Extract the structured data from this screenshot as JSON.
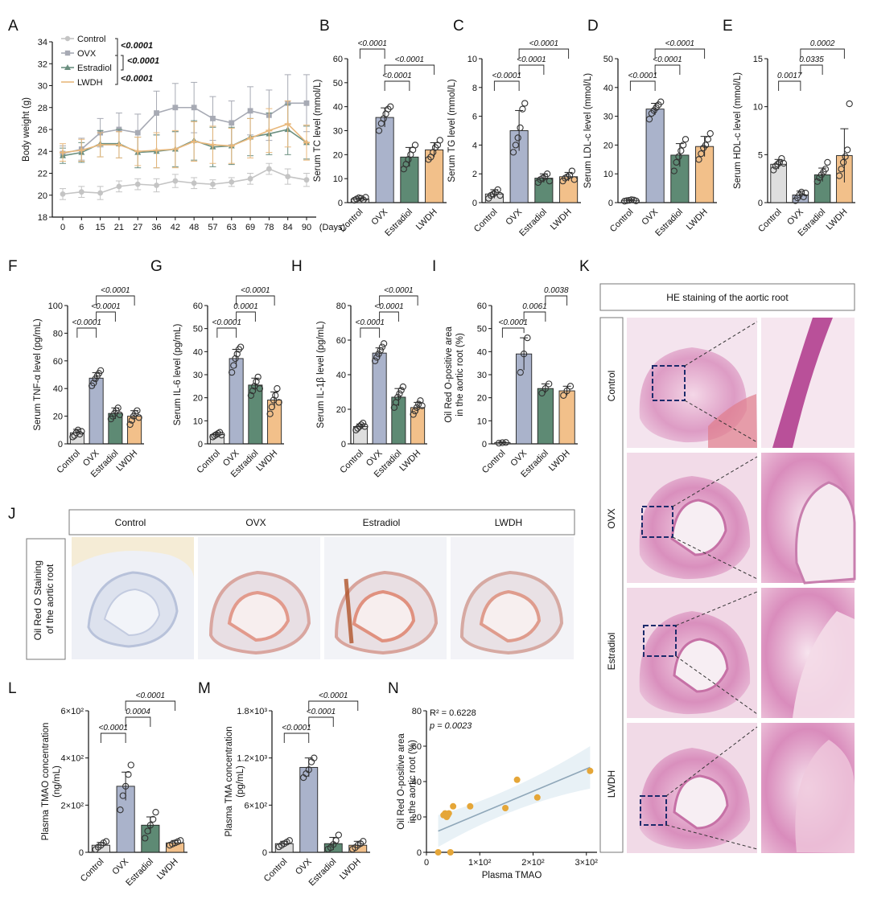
{
  "panel_labels": [
    "A",
    "B",
    "C",
    "D",
    "E",
    "F",
    "G",
    "H",
    "I",
    "J",
    "K",
    "L",
    "M",
    "N"
  ],
  "colors": {
    "control": "#dedede",
    "ovx": "#aab3cb",
    "estradiol": "#5e8a74",
    "lwdh": "#f2c08a",
    "line_control": "#c4c4c4",
    "line_ovx": "#a7aab4",
    "line_estradiol": "#6b8f80",
    "line_lwdh": "#e8b87c",
    "scatter": "#e5a638",
    "fit": "#8fa7b9"
  },
  "groups": [
    "Control",
    "OVX",
    "Estradiol",
    "LWDH"
  ],
  "chart_data": [
    {
      "id": "A",
      "type": "line",
      "ylabel": "Body weight (g)",
      "xlabel": "(Days)",
      "x": [
        0,
        6,
        15,
        21,
        27,
        36,
        42,
        48,
        57,
        63,
        69,
        78,
        84,
        90
      ],
      "yticks": [
        "18",
        "20",
        "22",
        "24",
        "26",
        "28",
        "30",
        "32",
        "34"
      ],
      "ylim": [
        18,
        34
      ],
      "legend": [
        "Control",
        "OVX",
        "Estradiol",
        "LWDH"
      ],
      "pvalues": [
        "<0.0001",
        "<0.0001",
        "<0.0001"
      ],
      "series": [
        {
          "name": "Control",
          "values": [
            20.1,
            20.3,
            20.2,
            20.8,
            21.0,
            20.9,
            21.3,
            21.1,
            21.0,
            21.2,
            21.5,
            22.4,
            21.7,
            21.4
          ],
          "err": [
            0.5,
            0.5,
            0.6,
            0.5,
            0.5,
            0.6,
            0.6,
            0.5,
            0.4,
            0.4,
            0.5,
            0.5,
            0.7,
            0.6
          ]
        },
        {
          "name": "OVX",
          "values": [
            23.8,
            24.2,
            25.7,
            26.0,
            25.7,
            27.5,
            28.0,
            28.0,
            27.0,
            26.6,
            27.7,
            27.3,
            28.4,
            28.4
          ],
          "err": [
            0.7,
            1.0,
            1.3,
            1.5,
            1.7,
            2.0,
            2.2,
            2.3,
            2.0,
            2.0,
            2.2,
            2.3,
            2.6,
            2.6
          ]
        },
        {
          "name": "Estradiol",
          "values": [
            23.6,
            23.9,
            24.7,
            24.7,
            23.9,
            24.0,
            24.2,
            25.0,
            24.4,
            24.5,
            25.3,
            25.6,
            26.0,
            24.8
          ],
          "err": [
            0.7,
            0.9,
            1.2,
            1.3,
            1.4,
            1.5,
            1.6,
            1.8,
            1.8,
            1.7,
            1.7,
            1.9,
            2.3,
            1.5
          ]
        },
        {
          "name": "LWDH",
          "values": [
            23.9,
            24.1,
            24.6,
            24.6,
            24.0,
            24.1,
            24.2,
            24.9,
            24.6,
            24.5,
            25.2,
            25.9,
            26.5,
            24.8
          ],
          "err": [
            0.8,
            1.0,
            1.1,
            1.2,
            1.3,
            1.6,
            1.7,
            1.8,
            1.7,
            1.6,
            1.8,
            2.0,
            2.1,
            1.6
          ]
        }
      ]
    },
    {
      "id": "B",
      "type": "bar",
      "ylabel": "Serum TC level (mmol/L)",
      "yticks": [
        "0",
        "10",
        "20",
        "30",
        "40",
        "50",
        "60"
      ],
      "ylim": [
        0,
        60
      ],
      "values": [
        1.5,
        35.5,
        19,
        22
      ],
      "err": [
        0.5,
        4,
        4,
        3
      ],
      "points": [
        [
          1,
          1.5,
          2,
          1.8,
          1.2,
          2.2
        ],
        [
          30,
          33,
          35,
          37,
          39,
          40
        ],
        [
          14,
          16,
          18,
          20,
          22,
          24
        ],
        [
          18,
          19,
          21,
          23,
          24,
          26
        ]
      ],
      "pvalues": [
        "<0.0001",
        "<0.0001",
        "<0.0001"
      ]
    },
    {
      "id": "C",
      "type": "bar",
      "ylabel": "Serum TG level (mmol/L)",
      "yticks": [
        "0",
        "2",
        "4",
        "6",
        "8",
        "10"
      ],
      "ylim": [
        0,
        10
      ],
      "values": [
        0.6,
        5.0,
        1.7,
        1.8
      ],
      "err": [
        0.3,
        1.4,
        0.3,
        0.3
      ],
      "points": [
        [
          0.3,
          0.5,
          0.6,
          0.7,
          0.9,
          0.5
        ],
        [
          3.5,
          4.0,
          4.5,
          5.2,
          6.5,
          6.9
        ],
        [
          1.4,
          1.6,
          1.7,
          1.8,
          2.0,
          1.5
        ],
        [
          1.5,
          1.7,
          1.8,
          1.9,
          2.2,
          1.6
        ]
      ],
      "pvalues": [
        "<0.0001",
        "<0.0001",
        "<0.0001"
      ]
    },
    {
      "id": "D",
      "type": "bar",
      "ylabel": "Serum LDL-c level (mmol/L)",
      "yticks": [
        "0",
        "10",
        "20",
        "30",
        "40",
        "50"
      ],
      "ylim": [
        0,
        50
      ],
      "values": [
        0.8,
        32.5,
        16.5,
        19.5
      ],
      "err": [
        0.3,
        2,
        4,
        3.5
      ],
      "points": [
        [
          0.5,
          0.7,
          0.8,
          1.0,
          0.9,
          0.6
        ],
        [
          29,
          31,
          32,
          33,
          34,
          35
        ],
        [
          11,
          14,
          16,
          18,
          20,
          22
        ],
        [
          15,
          17,
          19,
          20,
          22,
          24
        ]
      ],
      "pvalues": [
        "<0.0001",
        "<0.0001",
        "<0.0001"
      ]
    },
    {
      "id": "E",
      "type": "bar",
      "ylabel": "Serum HDL-c level (mmol/L)",
      "yticks": [
        "0",
        "5",
        "10",
        "15"
      ],
      "ylim": [
        0,
        15
      ],
      "values": [
        4.0,
        0.8,
        2.9,
        4.9
      ],
      "err": [
        0.5,
        0.4,
        0.7,
        2.8
      ],
      "points": [
        [
          3.4,
          3.8,
          4.0,
          4.2,
          4.6,
          4.1
        ],
        [
          0.2,
          0.5,
          0.8,
          1.1,
          0.6,
          1.0
        ],
        [
          2.2,
          2.6,
          2.9,
          3.2,
          3.5,
          4.2
        ],
        [
          2.8,
          3.5,
          4.2,
          4.8,
          5.5,
          10.3
        ]
      ],
      "pvalues": [
        "0.0017",
        "0.0335",
        "0.0002"
      ]
    },
    {
      "id": "F",
      "type": "bar",
      "ylabel": "Serum TNF-α level (pg/mL)",
      "yticks": [
        "0",
        "20",
        "40",
        "60",
        "80",
        "100"
      ],
      "ylim": [
        0,
        100
      ],
      "values": [
        8,
        47.5,
        22,
        20
      ],
      "err": [
        2.5,
        4,
        4,
        4
      ],
      "points": [
        [
          5,
          6,
          8,
          10,
          7,
          9
        ],
        [
          42,
          44,
          47,
          49,
          51,
          53
        ],
        [
          18,
          20,
          22,
          24,
          26,
          21
        ],
        [
          14,
          17,
          20,
          22,
          24,
          19
        ]
      ],
      "pvalues": [
        "<0.0001",
        "<0.0001",
        "<0.0001"
      ]
    },
    {
      "id": "G",
      "type": "bar",
      "ylabel": "Serum IL-6 level (pg/mL)",
      "yticks": [
        "0",
        "10",
        "20",
        "30",
        "40",
        "50",
        "60"
      ],
      "ylim": [
        0,
        60
      ],
      "values": [
        4,
        37,
        25.5,
        19
      ],
      "err": [
        0.8,
        4,
        3,
        3.5
      ],
      "points": [
        [
          3,
          3.5,
          4,
          4.5,
          5,
          3.8
        ],
        [
          31,
          34,
          37,
          39,
          41,
          42
        ],
        [
          21,
          23,
          25,
          27,
          29,
          24
        ],
        [
          13,
          16,
          19,
          21,
          24,
          18
        ]
      ],
      "pvalues": [
        "<0.0001",
        "0.0001",
        "<0.0001"
      ]
    },
    {
      "id": "H",
      "type": "bar",
      "ylabel": "Serum IL-1β level (pg/mL)",
      "yticks": [
        "0",
        "20",
        "40",
        "60",
        "80"
      ],
      "ylim": [
        0,
        80
      ],
      "values": [
        10,
        52.5,
        27,
        21
      ],
      "err": [
        1.5,
        3,
        5,
        3
      ],
      "points": [
        [
          8,
          9,
          10,
          11,
          12,
          10
        ],
        [
          48,
          50,
          52,
          54,
          56,
          58
        ],
        [
          21,
          24,
          27,
          29,
          31,
          33
        ],
        [
          17,
          19,
          21,
          23,
          25,
          22
        ]
      ],
      "pvalues": [
        "<0.0001",
        "<0.0001",
        "<0.0001"
      ]
    },
    {
      "id": "I",
      "type": "bar",
      "ylabel": "Oil Red O-positive area in the aortic root (%)",
      "yticks": [
        "0",
        "10",
        "20",
        "30",
        "40",
        "50",
        "60"
      ],
      "ylim": [
        0,
        60
      ],
      "values": [
        0.5,
        39,
        24,
        23
      ],
      "err": [
        0.3,
        7,
        2,
        2
      ],
      "points": [
        [
          0.3,
          0.5,
          0.6
        ],
        [
          31,
          39,
          46
        ],
        [
          22,
          24,
          26
        ],
        [
          21,
          23,
          25
        ]
      ],
      "pvalues": [
        "<0.0001",
        "0.0061",
        "0.0038"
      ]
    },
    {
      "id": "L",
      "type": "bar",
      "ylabel": "Plasma TMAO concentration (ng/mL)",
      "yticks": [
        "0",
        "2×10²",
        "4×10²",
        "6×10²"
      ],
      "ylim": [
        0,
        600
      ],
      "values": [
        30,
        280,
        115,
        40
      ],
      "err": [
        12,
        60,
        35,
        10
      ],
      "points": [
        [
          12,
          22,
          30,
          40,
          46
        ],
        [
          180,
          240,
          280,
          330,
          370
        ],
        [
          60,
          90,
          115,
          140,
          170
        ],
        [
          30,
          35,
          40,
          45,
          50
        ]
      ],
      "pvalues": [
        "<0.0001",
        "0.0004",
        "<0.0001"
      ]
    },
    {
      "id": "M",
      "type": "bar",
      "ylabel": "Plasma TMA concentration (pg/mL)",
      "yticks": [
        "0",
        "6×10²",
        "1.2×10³",
        "1.8×10³"
      ],
      "ylim": [
        0,
        1800
      ],
      "values": [
        110,
        1080,
        110,
        90
      ],
      "err": [
        30,
        120,
        80,
        50
      ],
      "points": [
        [
          70,
          90,
          110,
          130,
          150
        ],
        [
          950,
          1000,
          1050,
          1150,
          1200
        ],
        [
          40,
          60,
          100,
          150,
          220
        ],
        [
          40,
          60,
          90,
          110,
          140
        ]
      ],
      "pvalues": [
        "<0.0001",
        "<0.0001",
        "<0.0001"
      ]
    },
    {
      "id": "N",
      "type": "scatter",
      "xlabel": "Plasma TMAO",
      "ylabel": "Oil Red O-positive area in the aortic root (%)",
      "xticks": [
        "0",
        "1×10²",
        "2×10²",
        "3×10²"
      ],
      "yticks": [
        "0",
        "20",
        "40",
        "60",
        "80"
      ],
      "xlim": [
        0,
        320
      ],
      "ylim": [
        0,
        80
      ],
      "r2": "R² = 0.6228",
      "p": "p = 0.0023",
      "x": [
        22,
        32,
        38,
        42,
        45,
        50,
        82,
        148,
        170,
        208,
        307,
        35,
        40
      ],
      "y": [
        0,
        21,
        20,
        22,
        0,
        26,
        26,
        25,
        41,
        31,
        46,
        22,
        21
      ],
      "fit": [
        [
          22,
          12
        ],
        [
          307,
          48
        ]
      ]
    }
  ],
  "images": {
    "J": {
      "row_label": "Oil Red O Staining of the aortic root",
      "headers": [
        "Control",
        "OVX",
        "Estradiol",
        "LWDH"
      ]
    },
    "K": {
      "title": "HE staining of the aortic root",
      "rows": [
        "Control",
        "OVX",
        "Estradiol",
        "LWDH"
      ]
    }
  }
}
